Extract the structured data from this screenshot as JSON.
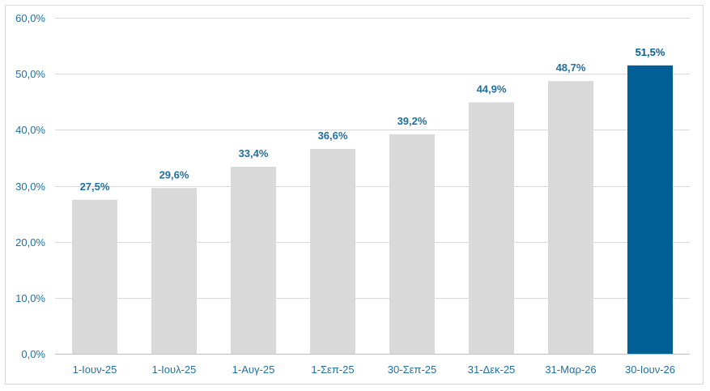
{
  "chart_data": {
    "type": "bar",
    "title": "",
    "xlabel": "",
    "ylabel": "",
    "categories": [
      "1-Ιουν-25",
      "1-Ιουλ-25",
      "1-Αυγ-25",
      "1-Σεπ-25",
      "30-Σεπ-25",
      "31-Δεκ-25",
      "31-Μαρ-26",
      "30-Ιουν-26"
    ],
    "values": [
      27.5,
      29.6,
      33.4,
      36.6,
      39.2,
      44.9,
      48.7,
      51.5
    ],
    "data_labels": [
      "27,5%",
      "29,6%",
      "33,4%",
      "36,6%",
      "39,2%",
      "44,9%",
      "48,7%",
      "51,5%"
    ],
    "ylim": [
      0,
      60
    ],
    "y_ticks": [
      0,
      10,
      20,
      30,
      40,
      50,
      60
    ],
    "y_tick_labels": [
      "0,0%",
      "10,0%",
      "20,0%",
      "30,0%",
      "40,0%",
      "50,0%",
      "60,0%"
    ],
    "grid": true,
    "legend": "none",
    "colors": {
      "bar": "#d9d9d9",
      "highlight_bar": "#006096",
      "gridline": "#d9d9d9",
      "axis_label": "#1f6f9f"
    },
    "highlight_index": 7
  }
}
